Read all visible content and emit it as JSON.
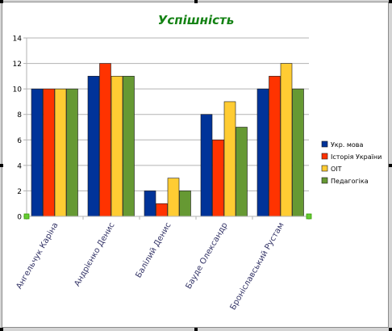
{
  "chart_data": {
    "type": "bar",
    "title": "Успішність",
    "categories": [
      "Ангельчук Каріна",
      "Андрієнко Денис",
      "Балілий Денис",
      "Бауде Олександр",
      "Броніславський Рустам"
    ],
    "series": [
      {
        "name": "Укр. мова",
        "color": "#003399",
        "values": [
          10,
          11,
          2,
          8,
          10
        ]
      },
      {
        "name": "Історія України",
        "color": "#ff3300",
        "values": [
          10,
          12,
          1,
          6,
          11
        ]
      },
      {
        "name": "ОІТ",
        "color": "#ffcc33",
        "values": [
          10,
          11,
          3,
          9,
          12
        ]
      },
      {
        "name": "Педагогіка",
        "color": "#669933",
        "values": [
          10,
          11,
          2,
          7,
          10
        ]
      }
    ],
    "ylim": [
      0,
      14
    ],
    "yticks": [
      0,
      2,
      4,
      6,
      8,
      10,
      12,
      14
    ],
    "grid": true,
    "legend_position": "right",
    "title_color": "#148214"
  }
}
